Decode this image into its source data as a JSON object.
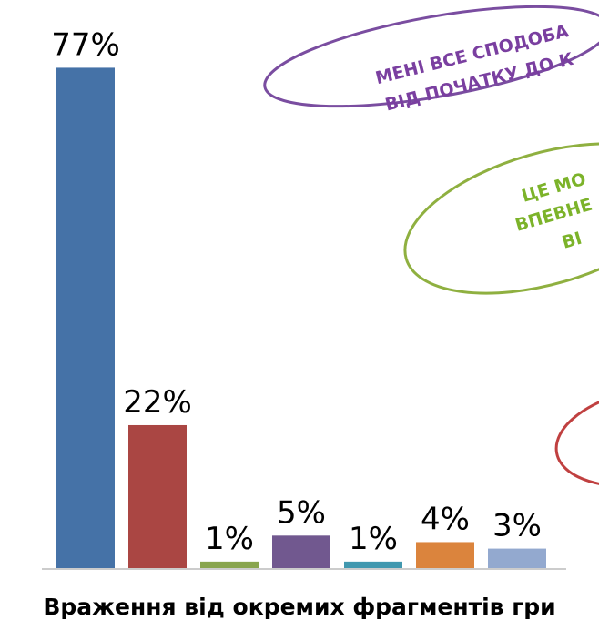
{
  "chart_data": {
    "type": "bar",
    "title": "Враження від окремих фрагментів гри",
    "values": [
      77,
      22,
      1,
      5,
      1,
      4,
      3
    ],
    "value_labels": [
      "77%",
      "22%",
      "1%",
      "5%",
      "1%",
      "4%",
      "3%"
    ],
    "colors": [
      "#4572a7",
      "#aa4643",
      "#89a54e",
      "#71588f",
      "#4198af",
      "#db843d",
      "#93a9cf"
    ],
    "ylim": [
      0,
      80
    ],
    "annotations": [
      {
        "color": "#7a3fa0",
        "lines": [
          "МЕНІ ВСЕ СПОДОБА",
          "ВІД ПОЧАТКУ ДО К"
        ]
      },
      {
        "color": "#7cb32a",
        "lines": [
          "ЦЕ МО",
          "ВПЕВНЕ",
          "ВІ"
        ]
      }
    ]
  }
}
